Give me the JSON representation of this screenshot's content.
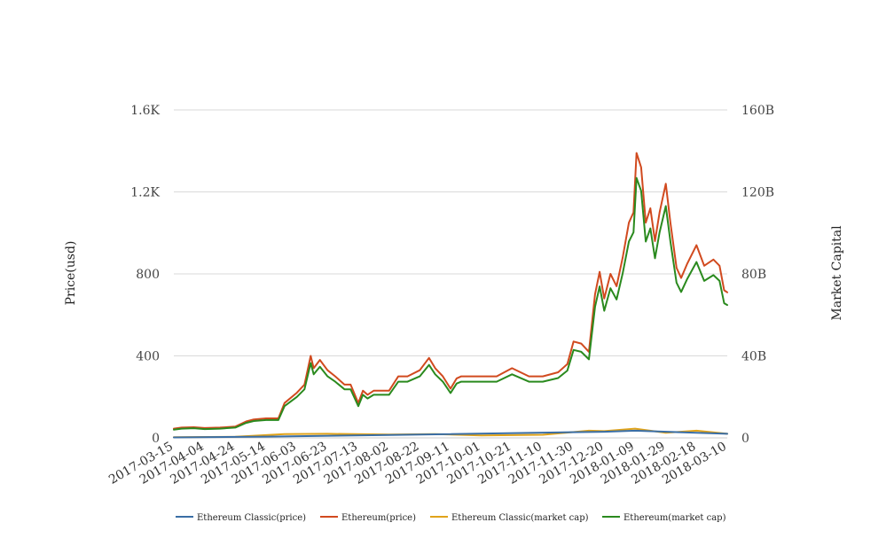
{
  "chart_data": {
    "type": "line",
    "title": "",
    "ylabel_left": "Price(usd)",
    "ylabel_right": "Market Capital",
    "ylim_left": [
      0,
      1600
    ],
    "ylim_right": [
      0,
      160
    ],
    "yticks_left": [
      "0",
      "400",
      "800",
      "1.2K",
      "1.6K"
    ],
    "yticks_right": [
      "0",
      "40B",
      "80B",
      "120B",
      "160B"
    ],
    "xticks": [
      "2017-03-15",
      "2017-04-04",
      "2017-04-24",
      "2017-05-14",
      "2017-06-03",
      "2017-06-23",
      "2017-07-13",
      "2017-08-02",
      "2017-08-22",
      "2017-09-11",
      "2017-10-01",
      "2017-10-21",
      "2017-11-10",
      "2017-11-30",
      "2017-12-20",
      "2018-01-09",
      "2018-01-29",
      "2018-02-18",
      "2018-03-10"
    ],
    "grid": true,
    "legend_position": "bottom",
    "series": [
      {
        "name": "Ethereum Classic(price)",
        "axis": "left",
        "color": "#3a6ea5",
        "x": [
          "2017-03-15",
          "2017-05-14",
          "2017-08-02",
          "2017-12-20",
          "2018-01-09",
          "2018-03-10"
        ],
        "values": [
          2,
          6,
          14,
          30,
          35,
          20
        ]
      },
      {
        "name": "Ethereum(price)",
        "axis": "left",
        "color": "#d14a1f",
        "x": [
          "2017-03-15",
          "2017-03-20",
          "2017-03-28",
          "2017-04-04",
          "2017-04-14",
          "2017-04-24",
          "2017-05-01",
          "2017-05-06",
          "2017-05-14",
          "2017-05-22",
          "2017-05-26",
          "2017-06-03",
          "2017-06-08",
          "2017-06-12",
          "2017-06-14",
          "2017-06-18",
          "2017-06-23",
          "2017-06-28",
          "2017-07-04",
          "2017-07-08",
          "2017-07-13",
          "2017-07-16",
          "2017-07-19",
          "2017-07-23",
          "2017-08-02",
          "2017-08-08",
          "2017-08-14",
          "2017-08-22",
          "2017-08-28",
          "2017-09-01",
          "2017-09-06",
          "2017-09-11",
          "2017-09-15",
          "2017-09-18",
          "2017-10-01",
          "2017-10-11",
          "2017-10-21",
          "2017-11-01",
          "2017-11-10",
          "2017-11-20",
          "2017-11-26",
          "2017-11-30",
          "2017-12-05",
          "2017-12-10",
          "2017-12-14",
          "2017-12-17",
          "2017-12-20",
          "2017-12-24",
          "2017-12-28",
          "2018-01-01",
          "2018-01-05",
          "2018-01-08",
          "2018-01-10",
          "2018-01-13",
          "2018-01-16",
          "2018-01-19",
          "2018-01-22",
          "2018-01-25",
          "2018-01-29",
          "2018-02-01",
          "2018-02-05",
          "2018-02-08",
          "2018-02-12",
          "2018-02-18",
          "2018-02-23",
          "2018-03-01",
          "2018-03-05",
          "2018-03-08",
          "2018-03-10"
        ],
        "values": [
          45,
          50,
          52,
          48,
          50,
          55,
          80,
          90,
          95,
          95,
          170,
          220,
          260,
          400,
          340,
          380,
          330,
          300,
          260,
          260,
          170,
          230,
          210,
          230,
          230,
          300,
          300,
          330,
          390,
          340,
          300,
          240,
          290,
          300,
          300,
          300,
          340,
          300,
          300,
          320,
          360,
          470,
          460,
          420,
          700,
          810,
          680,
          800,
          740,
          880,
          1050,
          1100,
          1390,
          1320,
          1050,
          1120,
          960,
          1100,
          1240,
          1050,
          830,
          780,
          850,
          940,
          840,
          870,
          840,
          720,
          710
        ]
      },
      {
        "name": "Ethereum Classic(market cap)",
        "axis": "right",
        "color": "#e0a31a",
        "x": [
          "2017-03-15",
          "2017-04-24",
          "2017-05-26",
          "2017-06-23",
          "2017-08-02",
          "2017-09-01",
          "2017-10-01",
          "2017-11-10",
          "2017-12-10",
          "2017-12-20",
          "2018-01-09",
          "2018-01-29",
          "2018-02-18",
          "2018-03-10"
        ],
        "values": [
          0.3,
          0.5,
          1.8,
          2.0,
          1.6,
          1.8,
          1.2,
          1.5,
          3.5,
          3.3,
          4.5,
          2.5,
          3.5,
          2.0
        ]
      },
      {
        "name": "Ethereum(market cap)",
        "axis": "right",
        "color": "#2a8a1e",
        "x": [
          "2017-03-15",
          "2017-03-20",
          "2017-03-28",
          "2017-04-04",
          "2017-04-14",
          "2017-04-24",
          "2017-05-01",
          "2017-05-06",
          "2017-05-14",
          "2017-05-22",
          "2017-05-26",
          "2017-06-03",
          "2017-06-08",
          "2017-06-12",
          "2017-06-14",
          "2017-06-18",
          "2017-06-23",
          "2017-06-28",
          "2017-07-04",
          "2017-07-08",
          "2017-07-13",
          "2017-07-16",
          "2017-07-19",
          "2017-07-23",
          "2017-08-02",
          "2017-08-08",
          "2017-08-14",
          "2017-08-22",
          "2017-08-28",
          "2017-09-01",
          "2017-09-06",
          "2017-09-11",
          "2017-09-15",
          "2017-09-18",
          "2017-10-01",
          "2017-10-11",
          "2017-10-21",
          "2017-11-01",
          "2017-11-10",
          "2017-11-20",
          "2017-11-26",
          "2017-11-30",
          "2017-12-05",
          "2017-12-10",
          "2017-12-14",
          "2017-12-17",
          "2017-12-20",
          "2017-12-24",
          "2017-12-28",
          "2018-01-01",
          "2018-01-05",
          "2018-01-08",
          "2018-01-10",
          "2018-01-13",
          "2018-01-16",
          "2018-01-19",
          "2018-01-22",
          "2018-01-25",
          "2018-01-29",
          "2018-02-01",
          "2018-02-05",
          "2018-02-08",
          "2018-02-12",
          "2018-02-18",
          "2018-02-23",
          "2018-03-01",
          "2018-03-05",
          "2018-03-08",
          "2018-03-10"
        ],
        "values": [
          4,
          4.5,
          4.7,
          4.3,
          4.5,
          5.0,
          7.3,
          8.2,
          8.7,
          8.7,
          15.5,
          20,
          23.7,
          36.5,
          31,
          34.7,
          30,
          27.4,
          23.7,
          23.7,
          15.5,
          21,
          19.2,
          21,
          21,
          27.4,
          27.4,
          30,
          35.6,
          31,
          27.4,
          21.9,
          26.5,
          27.4,
          27.4,
          27.4,
          31,
          27.4,
          27.4,
          29.2,
          32.8,
          42.9,
          42,
          38.3,
          63.9,
          73.9,
          62,
          73,
          67.5,
          80.3,
          95.8,
          100.3,
          126.8,
          120.5,
          95.8,
          102.2,
          87.6,
          100.3,
          113.1,
          95.8,
          75.7,
          71.2,
          77.6,
          85.8,
          76.6,
          79.4,
          76.6,
          65.7,
          64.8
        ]
      }
    ]
  }
}
